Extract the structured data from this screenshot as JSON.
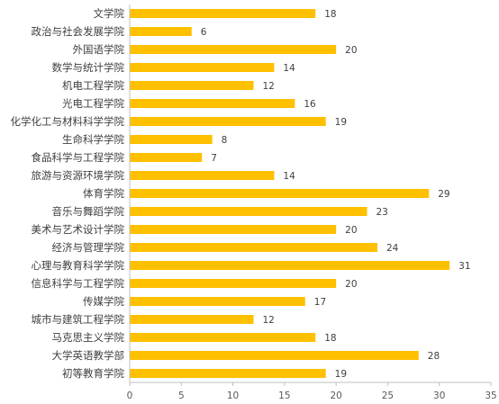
{
  "chart_data": {
    "type": "bar",
    "orientation": "horizontal",
    "categories": [
      "文学院",
      "政治与社会发展学院",
      "外国语学院",
      "数学与统计学院",
      "机电工程学院",
      "光电工程学院",
      "化学化工与材料科学学院",
      "生命科学学院",
      "食品科学与工程学院",
      "旅游与资源环境学院",
      "体育学院",
      "音乐与舞蹈学院",
      "美术与艺术设计学院",
      "经济与管理学院",
      "心理与教育科学学院",
      "信息科学与工程学院",
      "传媒学院",
      "城市与建筑工程学院",
      "马克思主义学院",
      "大学英语教学部",
      "初等教育学院"
    ],
    "values": [
      18,
      6,
      20,
      14,
      12,
      16,
      19,
      8,
      7,
      14,
      29,
      23,
      20,
      24,
      31,
      20,
      17,
      12,
      18,
      28,
      19
    ],
    "title": "",
    "xlabel": "",
    "ylabel": "",
    "xlim": [
      0,
      35
    ],
    "xticks": [
      "0",
      "5",
      "10",
      "15",
      "20",
      "25",
      "30",
      "35"
    ],
    "grid": false,
    "legend": "none",
    "bar_color": "#FFC000",
    "axis_color": "#BFBFBF",
    "text_color": "#404040"
  }
}
